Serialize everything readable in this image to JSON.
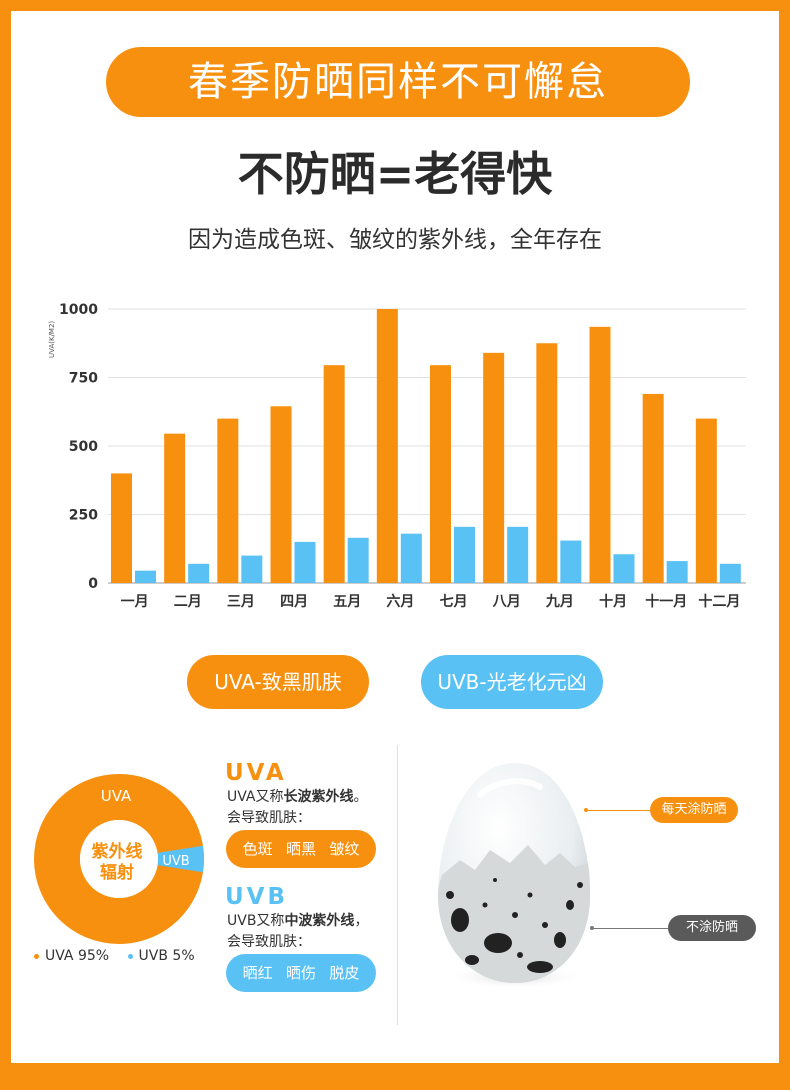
{
  "banner": {
    "text": "春季防晒同样不可懈怠"
  },
  "headline": {
    "text": "不防晒=老得快"
  },
  "subline": {
    "text": "因为造成色斑、皱纹的紫外线，全年存在"
  },
  "colors": {
    "orange": "#f7900f",
    "blue": "#5ac1f5",
    "dark_tag": "#5a5a5a"
  },
  "chart_data": {
    "type": "bar",
    "ylabel": "UVA(K/M2)",
    "xlabel": "",
    "title": "",
    "ylim": [
      0,
      1000
    ],
    "yticks": [
      0,
      250,
      500,
      750,
      1000
    ],
    "grid": true,
    "categories": [
      "一月",
      "二月",
      "三月",
      "四月",
      "五月",
      "六月",
      "七月",
      "八月",
      "九月",
      "十月",
      "十一月",
      "十二月"
    ],
    "series": [
      {
        "values": [
          400,
          545,
          600,
          645,
          795,
          1000,
          795,
          840,
          875,
          935,
          690,
          600
        ]
      },
      {
        "values": [
          45,
          70,
          100,
          150,
          165,
          180,
          205,
          205,
          155,
          105,
          80,
          70
        ]
      }
    ]
  },
  "pills": {
    "uva": "UVA-致黑肌肤",
    "uvb": "UVB-光老化元凶"
  },
  "donut": {
    "uva_label": "UVA",
    "uvb_label": "UVB",
    "center_line1": "紫外线",
    "center_line2": "辐射",
    "uva_pct": 95,
    "uvb_pct": 5,
    "legend_uva": "UVA  95%",
    "legend_uvb": "UVB 5%"
  },
  "uva_info": {
    "title": "UVA",
    "line1_pre": "UVA又称",
    "line1_bold": "长波紫外线",
    "line1_post": "。",
    "line2": "会导致肌肤：",
    "effects": [
      "色斑",
      "晒黑",
      "皱纹"
    ]
  },
  "uvb_info": {
    "title": "UVB",
    "line1_pre": "UVB又称",
    "line1_bold": "中波紫外线",
    "line1_post": "，",
    "line2": "会导致肌肤：",
    "effects": [
      "晒红",
      "晒伤",
      "脱皮"
    ]
  },
  "egg": {
    "tag_sunscreen": "每天涂防晒",
    "tag_no_sunscreen": "不涂防晒"
  }
}
